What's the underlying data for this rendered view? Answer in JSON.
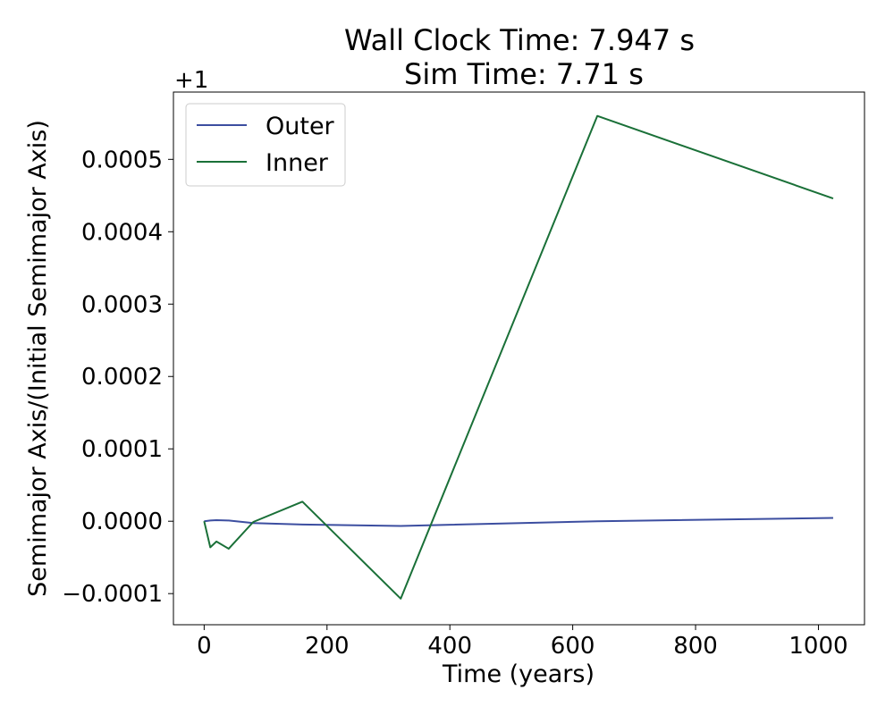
{
  "chart_data": {
    "type": "line",
    "title_lines": [
      "Wall Clock Time: 7.947 s",
      "Sim Time: 7.71 s"
    ],
    "xlabel": "Time (years)",
    "ylabel": "Semimajor Axis/(Initial Semimajor Axis)",
    "offset_text": "+1",
    "xlim": [
      -50,
      1075
    ],
    "ylim": [
      -0.000143,
      0.000593
    ],
    "x_ticks": [
      0,
      200,
      400,
      600,
      800,
      1000
    ],
    "x_tick_labels": [
      "0",
      "200",
      "400",
      "600",
      "800",
      "1000"
    ],
    "y_ticks": [
      -0.0001,
      0.0,
      0.0001,
      0.0002,
      0.0003,
      0.0004,
      0.0005
    ],
    "y_tick_labels": [
      "−0.0001",
      "0.0000",
      "0.0001",
      "0.0002",
      "0.0003",
      "0.0004",
      "0.0005"
    ],
    "grid": false,
    "legend_position": "top-left",
    "series": [
      {
        "name": "Outer",
        "color": "#3c4ea0",
        "x": [
          0,
          10,
          20,
          40,
          80,
          160,
          320,
          640,
          1024
        ],
        "y": [
          0.0,
          1e-06,
          1.5e-06,
          1e-06,
          -2.5e-06,
          -4.5e-06,
          -6.5e-06,
          0.0,
          4.5e-06
        ]
      },
      {
        "name": "Inner",
        "color": "#1a7038",
        "x": [
          0,
          10,
          20,
          40,
          80,
          160,
          320,
          640,
          1024
        ],
        "y": [
          0.0,
          -3.6e-05,
          -2.8e-05,
          -3.8e-05,
          -1e-06,
          2.7e-05,
          -0.000107,
          0.00056,
          0.000446
        ]
      }
    ]
  }
}
